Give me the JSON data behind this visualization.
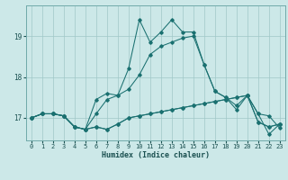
{
  "xlabel": "Humidex (Indice chaleur)",
  "xlim": [
    -0.5,
    23.5
  ],
  "ylim": [
    16.45,
    19.75
  ],
  "yticks": [
    17,
    18,
    19
  ],
  "xticks": [
    0,
    1,
    2,
    3,
    4,
    5,
    6,
    7,
    8,
    9,
    10,
    11,
    12,
    13,
    14,
    15,
    16,
    17,
    18,
    19,
    20,
    21,
    22,
    23
  ],
  "background_color": "#cce8e8",
  "grid_color": "#a0c8c8",
  "line_color": "#1a7070",
  "line1_y": [
    17.0,
    17.1,
    17.1,
    17.05,
    16.78,
    16.72,
    16.78,
    16.72,
    16.85,
    17.0,
    17.05,
    17.1,
    17.15,
    17.2,
    17.25,
    17.3,
    17.35,
    17.4,
    17.45,
    17.5,
    17.55,
    16.9,
    16.78,
    16.85
  ],
  "line2_y": [
    17.0,
    17.1,
    17.1,
    17.05,
    16.78,
    16.72,
    17.45,
    17.6,
    17.55,
    18.2,
    19.4,
    18.85,
    19.1,
    19.4,
    19.1,
    19.1,
    18.3,
    17.65,
    17.5,
    17.3,
    17.55,
    17.1,
    16.6,
    16.85
  ],
  "line3_y": [
    17.0,
    17.1,
    17.1,
    17.05,
    16.78,
    16.72,
    16.78,
    16.72,
    16.85,
    17.0,
    17.05,
    17.1,
    17.15,
    17.2,
    17.25,
    17.3,
    17.35,
    17.4,
    17.45,
    17.5,
    17.55,
    16.9,
    16.78,
    16.85
  ],
  "line4_y": [
    17.0,
    17.1,
    17.1,
    17.05,
    16.78,
    16.72,
    17.1,
    17.45,
    17.55,
    17.7,
    18.05,
    18.55,
    18.75,
    18.85,
    18.95,
    19.0,
    18.3,
    17.65,
    17.5,
    17.2,
    17.55,
    17.1,
    17.05,
    16.75
  ]
}
